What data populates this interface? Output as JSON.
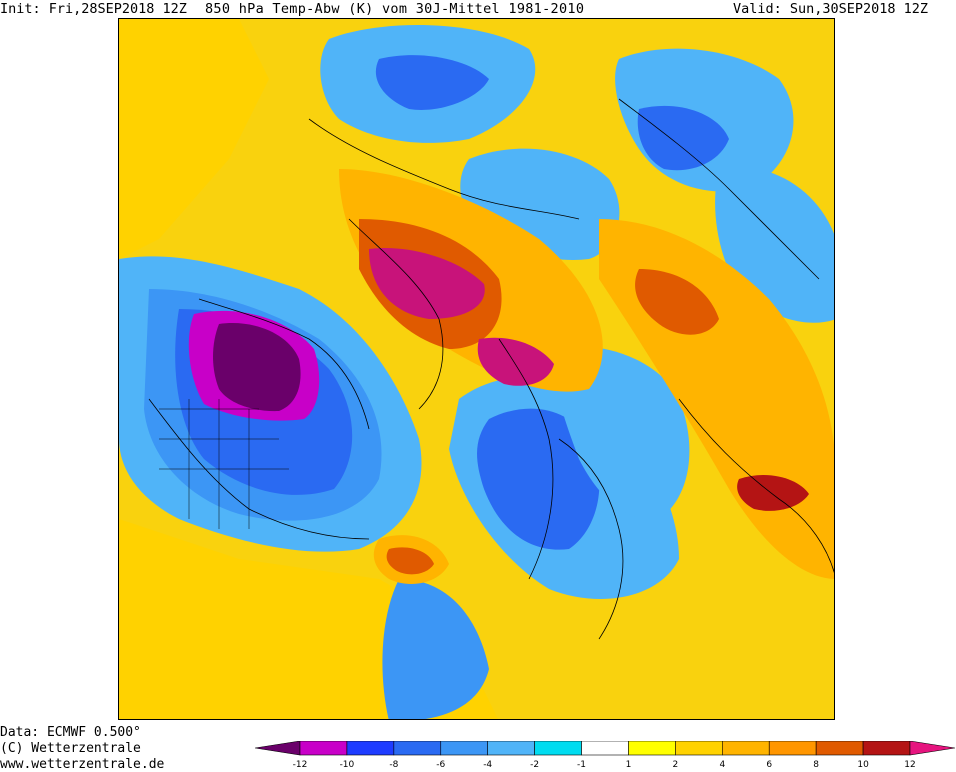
{
  "header": {
    "init": "Init: Fri,28SEP2018 12Z",
    "title": "850 hPa Temp-Abw (K) vom 30J-Mittel 1981-2010",
    "valid": "Valid: Sun,30SEP2018 12Z"
  },
  "footer": {
    "data_line": "Data: ECMWF  0.500°",
    "copyright": "(C) Wetterzentrale",
    "website": "www.wetterzentrale.de"
  },
  "legend": {
    "tick_labels": [
      "-12",
      "-10",
      "-8",
      "-6",
      "-4",
      "-2",
      "-1",
      "1",
      "2",
      "4",
      "6",
      "8",
      "10",
      "12"
    ],
    "colors": [
      "#6a006a",
      "#c800c8",
      "#1e3cff",
      "#2a6af2",
      "#3c96f5",
      "#50b4f8",
      "#00dcf0",
      "#ffffff",
      "#ffff00",
      "#ffd200",
      "#ffb400",
      "#ff9600",
      "#e05a00",
      "#b41414",
      "#e6147f"
    ]
  },
  "map": {
    "projection": "polar stereographic, North Pole centered",
    "palette": {
      "deep_cold": "#6a006a",
      "magenta_cold": "#c800c8",
      "blue": "#2a6af2",
      "mid_blue": "#3c96f5",
      "light_blue": "#50b4f8",
      "cyan": "#00dcf0",
      "yellow": "#ffff00",
      "light_orange": "#ffd200",
      "orange": "#ffb400",
      "dark_orange": "#ff9600",
      "rust": "#e05a00",
      "red": "#b41414",
      "hot_magenta": "#c8137a"
    }
  }
}
